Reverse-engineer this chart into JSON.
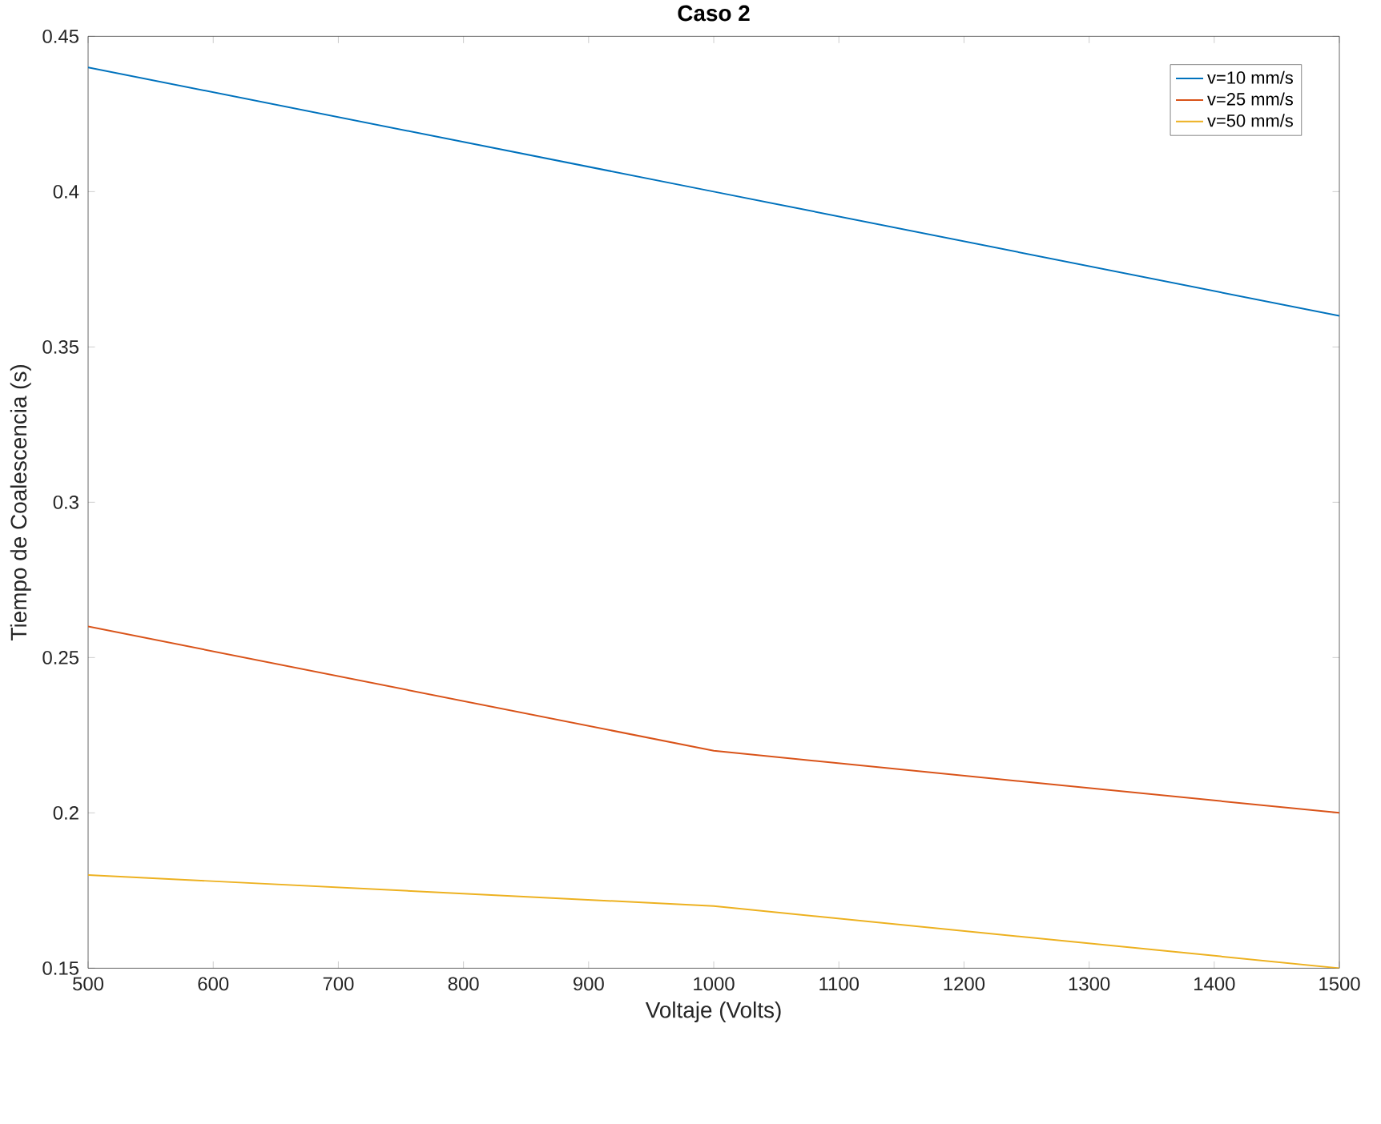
{
  "chart_data": {
    "type": "line",
    "title": "Caso 2",
    "xlabel": "Voltaje (Volts)",
    "ylabel": "Tiempo de Coalescencia (s)",
    "x": [
      500,
      1000,
      1500
    ],
    "series": [
      {
        "name": "v=10 mm/s",
        "color": "#0072bd",
        "values": [
          0.44,
          0.4,
          0.36
        ]
      },
      {
        "name": "v=25 mm/s",
        "color": "#d95319",
        "values": [
          0.26,
          0.22,
          0.2
        ]
      },
      {
        "name": "v=50 mm/s",
        "color": "#edb120",
        "values": [
          0.18,
          0.17,
          0.15
        ]
      }
    ],
    "xlim": [
      500,
      1500
    ],
    "ylim": [
      0.15,
      0.45
    ],
    "xticks": [
      500,
      600,
      700,
      800,
      900,
      1000,
      1100,
      1200,
      1300,
      1400,
      1500
    ],
    "yticks": [
      0.15,
      0.2,
      0.25,
      0.3,
      0.35,
      0.4,
      0.45
    ],
    "grid": false,
    "legend": "top right",
    "marker": "none",
    "line_style": "solid"
  }
}
